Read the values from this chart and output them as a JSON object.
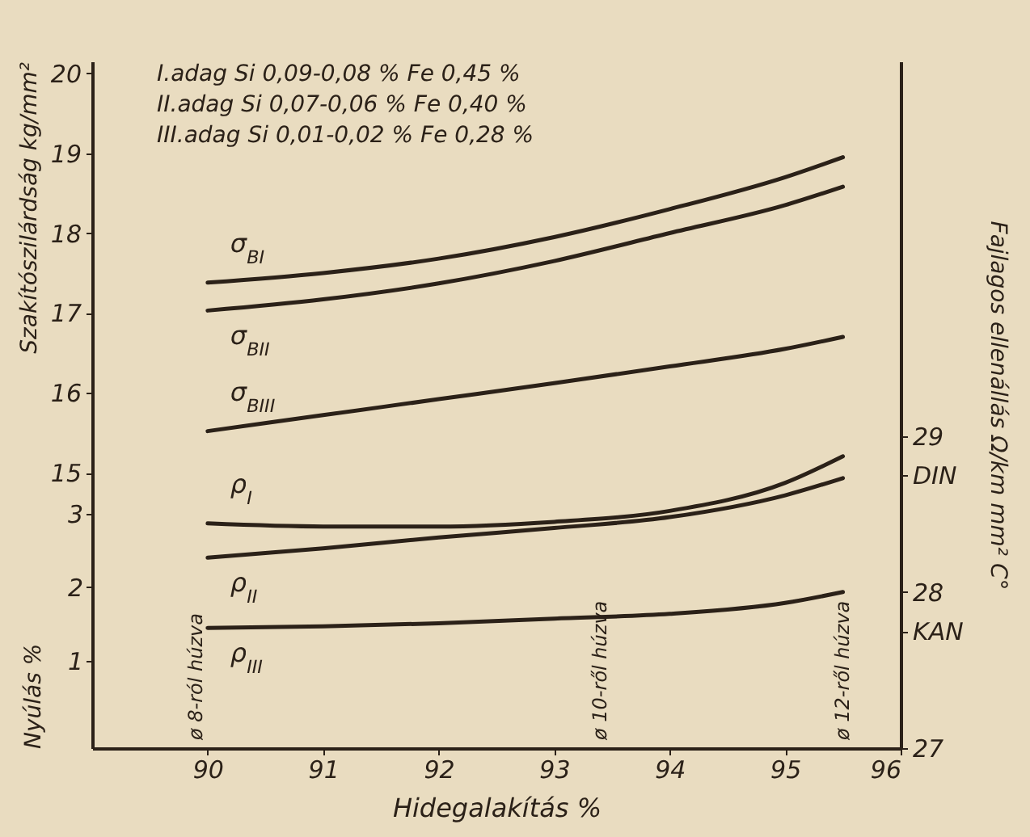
{
  "chart_data": {
    "type": "line",
    "xlabel": "Hidegalakítás %",
    "ylabel": "Szakítószilárdság kg/mm²",
    "y2label": "Fajlagos ellenállás Ω/km mm² C°",
    "y3label": "Nyúlás %",
    "x": [
      90,
      91,
      92,
      93,
      94,
      95,
      95.5
    ],
    "xlim": [
      89,
      96
    ],
    "xticks": [
      90,
      91,
      92,
      93,
      94,
      95,
      96
    ],
    "ylim": [
      11.55,
      20.15
    ],
    "yticks": [
      15,
      16,
      17,
      18,
      19,
      20
    ],
    "y3lim": [
      -0.19,
      9.16
    ],
    "y3ticks": [
      1,
      2,
      3
    ],
    "y2lim": [
      27,
      31.4
    ],
    "y2ticks": [
      27,
      {
        "value": 27.75,
        "label": "KAN"
      },
      28,
      {
        "value": 28.75,
        "label": "DIN"
      },
      29
    ],
    "series": [
      {
        "name": "σ$_{BI}$",
        "color": "#2b2118",
        "values": [
          17.38,
          17.5,
          17.68,
          17.95,
          18.3,
          18.7,
          18.95
        ]
      },
      {
        "name": "σ$_{BII}$",
        "color": "#2b2118",
        "values": [
          17.03,
          17.17,
          17.37,
          17.65,
          18.0,
          18.35,
          18.58
        ]
      },
      {
        "name": "σ$_{BIII}$",
        "color": "#2b2118",
        "values": [
          15.52,
          15.72,
          15.92,
          16.12,
          16.33,
          16.55,
          16.7
        ]
      },
      {
        "name": "ρ$_{I}$",
        "color": "#2b2118",
        "axis": "y2",
        "values": [
          28.44,
          28.42,
          28.42,
          28.45,
          28.52,
          28.7,
          28.87
        ]
      },
      {
        "name": "ρ$_{II}$",
        "color": "#2b2118",
        "axis": "y2",
        "values": [
          28.22,
          28.28,
          28.35,
          28.41,
          28.48,
          28.62,
          28.73
        ]
      },
      {
        "name": "ρ$_{III}$",
        "color": "#2b2118",
        "axis": "y2",
        "values": [
          27.77,
          27.78,
          27.8,
          27.83,
          27.86,
          27.93,
          28.0
        ]
      }
    ],
    "annotations": [
      "I.adag Si 0,09-0,08 %   Fe 0,45 %",
      "II.adag Si 0,07-0,06 %   Fe 0,40 %",
      "III.adag Si 0,01-0,02 %   Fe 0,28 %",
      "ø 8-ról húzva",
      "ø 10-ről húzva",
      "ø 12-ről húzva"
    ]
  }
}
